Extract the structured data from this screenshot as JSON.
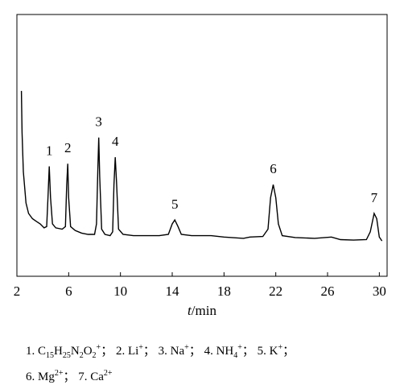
{
  "chart_data": {
    "type": "line",
    "xlabel": {
      "var": "t",
      "unit": "/min"
    },
    "xlim": [
      2,
      30.6
    ],
    "ylim": [
      0,
      100
    ],
    "xticks": [
      2,
      6,
      10,
      14,
      18,
      22,
      26,
      30
    ],
    "color": "#000000",
    "x": [
      2.35,
      2.4,
      2.5,
      2.7,
      2.9,
      3.2,
      3.5,
      3.8,
      4.1,
      4.3,
      4.4,
      4.5,
      4.6,
      4.75,
      5.0,
      5.5,
      5.75,
      5.85,
      5.93,
      6.0,
      6.15,
      6.5,
      7.0,
      7.5,
      8.0,
      8.15,
      8.25,
      8.32,
      8.4,
      8.55,
      8.8,
      9.2,
      9.4,
      9.5,
      9.6,
      9.7,
      9.85,
      10.2,
      11,
      12,
      13,
      13.7,
      14.0,
      14.2,
      14.45,
      14.7,
      15.5,
      17,
      18,
      19.5,
      20,
      21,
      21.4,
      21.6,
      21.8,
      22.0,
      22.2,
      22.5,
      23.5,
      25,
      26.3,
      27,
      28,
      29,
      29.3,
      29.6,
      29.8,
      30.0,
      30.2
    ],
    "values": [
      70.8,
      55,
      40,
      28,
      24,
      22,
      21,
      20,
      18.5,
      19,
      30,
      42,
      30,
      20,
      18.5,
      18,
      19,
      35,
      43,
      30,
      19,
      17.5,
      16.5,
      16,
      16,
      20,
      40,
      53,
      38,
      18,
      16,
      15.5,
      17,
      35,
      45.5,
      36,
      18,
      16,
      15.5,
      15.5,
      15.5,
      16,
      20,
      21.5,
      19,
      16,
      15.5,
      15.5,
      15,
      14.5,
      15,
      15.2,
      18,
      30,
      35,
      30,
      20,
      15.5,
      14.8,
      14.5,
      15,
      14,
      13.8,
      14,
      17,
      24,
      22,
      15,
      13.5
    ],
    "annotations": [
      {
        "text": "1",
        "x": 4.5
      },
      {
        "text": "2",
        "x": 5.93
      },
      {
        "text": "3",
        "x": 8.32
      },
      {
        "text": "4",
        "x": 9.6
      },
      {
        "text": "5",
        "x": 14.2
      },
      {
        "text": "6",
        "x": 21.8
      },
      {
        "text": "7",
        "x": 29.6
      }
    ],
    "caption": [
      [
        {
          "t": "1. C"
        },
        {
          "sub": "15"
        },
        {
          "t": "H"
        },
        {
          "sub": "25"
        },
        {
          "t": "N"
        },
        {
          "sub": "2"
        },
        {
          "t": "O"
        },
        {
          "sub": "2"
        },
        {
          "sup": "+"
        },
        {
          "t": "； 2. Li"
        },
        {
          "sup": "+"
        },
        {
          "t": "； 3. Na"
        },
        {
          "sup": "+"
        },
        {
          "t": "； 4. NH"
        },
        {
          "sub": "4"
        },
        {
          "sup": "+"
        },
        {
          "t": "； 5. K"
        },
        {
          "sup": "+"
        },
        {
          "t": "；"
        }
      ],
      [
        {
          "t": "6. Mg"
        },
        {
          "sup": "2+"
        },
        {
          "t": "； 7. Ca"
        },
        {
          "sup": "2+"
        }
      ]
    ]
  }
}
